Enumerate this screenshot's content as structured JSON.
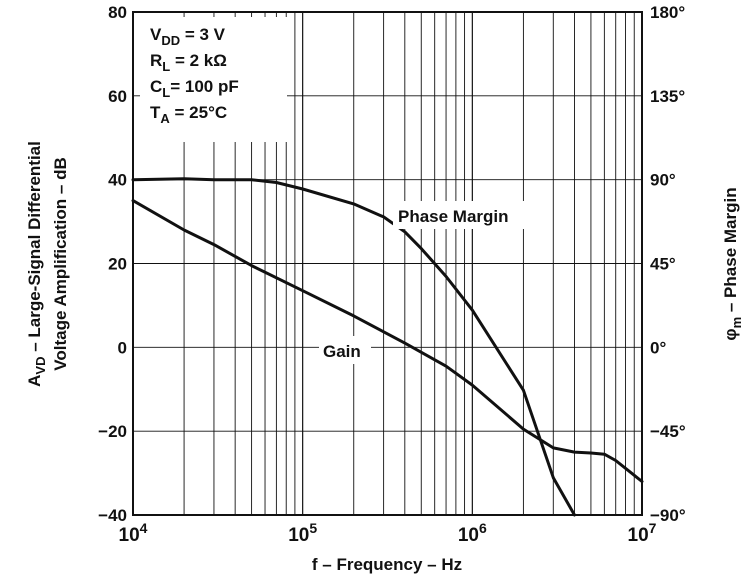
{
  "chart_data": {
    "type": "line",
    "xlabel": "f – Frequency – Hz",
    "ylabel_left_line1": "A",
    "ylabel_left_sub": "VD",
    "ylabel_left_line1_rest": " – Large-Signal Differential",
    "ylabel_left_line2": "Voltage Amplification – dB",
    "ylabel_right_main": "φ",
    "ylabel_right_sub": "m",
    "ylabel_right_rest": " – Phase Margin",
    "x_scale": "log",
    "xlim": [
      10000,
      10000000
    ],
    "ylim_left": [
      -40,
      80
    ],
    "ylim_right_deg": [
      -90,
      180
    ],
    "grid": true,
    "x_ticks": [
      {
        "value": 10000,
        "base": "10",
        "exp": "4"
      },
      {
        "value": 100000,
        "base": "10",
        "exp": "5"
      },
      {
        "value": 1000000,
        "base": "10",
        "exp": "6"
      },
      {
        "value": 10000000,
        "base": "10",
        "exp": "7"
      }
    ],
    "y_ticks_left": [
      "80",
      "60",
      "40",
      "20",
      "0",
      "−20",
      "−40"
    ],
    "y_ticks_right": [
      "180°",
      "135°",
      "90°",
      "45°",
      "0°",
      "−45°",
      "−90°"
    ],
    "conditions": [
      {
        "main": "V",
        "sub": "DD",
        "rest": " = 3 V"
      },
      {
        "main": "R",
        "sub": "L",
        "rest": " = 2 kΩ"
      },
      {
        "main": "C",
        "sub": "L",
        "rest": "= 100 pF"
      },
      {
        "main": "T",
        "sub": "A",
        "rest": " = 25°C"
      }
    ],
    "series": [
      {
        "name": "Gain",
        "axis": "left",
        "x": [
          10000,
          20000,
          30000,
          50000,
          100000,
          200000,
          400000,
          700000,
          1000000,
          2000000,
          3000000,
          4000000,
          5000000,
          6000000,
          7000000,
          10000000
        ],
        "y": [
          35,
          28,
          24.5,
          19.5,
          13.5,
          7.5,
          1,
          -4.5,
          -9,
          -19.5,
          -24,
          -25,
          -25.2,
          -25.5,
          -27,
          -32
        ]
      },
      {
        "name": "Phase Margin",
        "axis": "right",
        "x": [
          10000,
          20000,
          30000,
          50000,
          70000,
          100000,
          200000,
          300000,
          400000,
          500000,
          700000,
          1000000,
          2000000,
          3000000,
          4000000
        ],
        "y": [
          90,
          90.5,
          90,
          90,
          88.5,
          85,
          77,
          70,
          62,
          53,
          38,
          20,
          -23,
          -70,
          -90
        ]
      }
    ],
    "annotations": [
      {
        "text": "Phase Margin",
        "series": "Phase Margin"
      },
      {
        "text": "Gain",
        "series": "Gain"
      }
    ]
  }
}
